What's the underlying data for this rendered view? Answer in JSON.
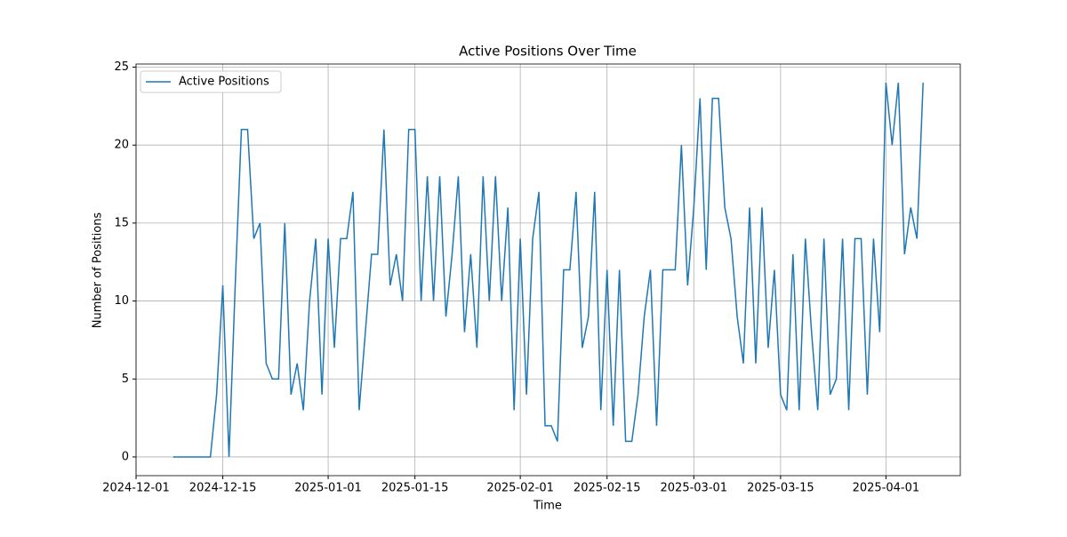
{
  "chart_data": {
    "type": "line",
    "title": "Active Positions Over Time",
    "xlabel": "Time",
    "ylabel": "Number of Positions",
    "x": [
      "2024-12-07",
      "2024-12-08",
      "2024-12-09",
      "2024-12-10",
      "2024-12-11",
      "2024-12-12",
      "2024-12-13",
      "2024-12-14",
      "2024-12-15",
      "2024-12-16",
      "2024-12-17",
      "2024-12-18",
      "2024-12-19",
      "2024-12-20",
      "2024-12-21",
      "2024-12-22",
      "2024-12-23",
      "2024-12-24",
      "2024-12-25",
      "2024-12-26",
      "2024-12-27",
      "2024-12-28",
      "2024-12-29",
      "2024-12-30",
      "2024-12-31",
      "2025-01-01",
      "2025-01-02",
      "2025-01-03",
      "2025-01-04",
      "2025-01-05",
      "2025-01-06",
      "2025-01-07",
      "2025-01-08",
      "2025-01-09",
      "2025-01-10",
      "2025-01-11",
      "2025-01-12",
      "2025-01-13",
      "2025-01-14",
      "2025-01-15",
      "2025-01-16",
      "2025-01-17",
      "2025-01-18",
      "2025-01-19",
      "2025-01-20",
      "2025-01-21",
      "2025-01-22",
      "2025-01-23",
      "2025-01-24",
      "2025-01-25",
      "2025-01-26",
      "2025-01-27",
      "2025-01-28",
      "2025-01-29",
      "2025-01-30",
      "2025-01-31",
      "2025-02-01",
      "2025-02-02",
      "2025-02-03",
      "2025-02-04",
      "2025-02-05",
      "2025-02-06",
      "2025-02-07",
      "2025-02-08",
      "2025-02-09",
      "2025-02-10",
      "2025-02-11",
      "2025-02-12",
      "2025-02-13",
      "2025-02-14",
      "2025-02-15",
      "2025-02-16",
      "2025-02-17",
      "2025-02-18",
      "2025-02-19",
      "2025-02-20",
      "2025-02-21",
      "2025-02-22",
      "2025-02-23",
      "2025-02-24",
      "2025-02-25",
      "2025-02-26",
      "2025-02-27",
      "2025-02-28",
      "2025-03-01",
      "2025-03-02",
      "2025-03-03",
      "2025-03-04",
      "2025-03-05",
      "2025-03-06",
      "2025-03-07",
      "2025-03-08",
      "2025-03-09",
      "2025-03-10",
      "2025-03-11",
      "2025-03-12",
      "2025-03-13",
      "2025-03-14",
      "2025-03-15",
      "2025-03-16",
      "2025-03-17",
      "2025-03-18",
      "2025-03-19",
      "2025-03-20",
      "2025-03-21",
      "2025-03-22",
      "2025-03-23",
      "2025-03-24",
      "2025-03-25",
      "2025-03-26",
      "2025-03-27",
      "2025-03-28",
      "2025-03-29",
      "2025-03-30",
      "2025-03-31",
      "2025-04-01",
      "2025-04-02",
      "2025-04-03",
      "2025-04-04",
      "2025-04-05",
      "2025-04-06",
      "2025-04-07"
    ],
    "series": [
      {
        "name": "Active Positions",
        "color": "#1f77b4",
        "values": [
          0,
          0,
          0,
          0,
          0,
          0,
          0,
          4,
          11,
          0,
          11,
          21,
          21,
          14,
          15,
          6,
          5,
          5,
          15,
          4,
          6,
          3,
          10,
          14,
          4,
          14,
          7,
          14,
          14,
          17,
          3,
          8,
          13,
          13,
          21,
          11,
          13,
          10,
          21,
          21,
          10,
          18,
          10,
          18,
          9,
          13,
          18,
          8,
          13,
          7,
          18,
          10,
          18,
          10,
          16,
          3,
          14,
          4,
          14,
          17,
          2,
          2,
          1,
          12,
          12,
          17,
          7,
          9,
          17,
          3,
          12,
          2,
          12,
          1,
          1,
          4,
          9,
          12,
          2,
          12,
          12,
          12,
          20,
          11,
          16,
          23,
          12,
          23,
          23,
          16,
          14,
          9,
          6,
          16,
          6,
          16,
          7,
          12,
          4,
          3,
          13,
          3,
          14,
          8,
          3,
          14,
          4,
          5,
          14,
          3,
          14,
          14,
          4,
          14,
          8,
          24,
          20,
          24,
          13,
          16,
          14,
          24
        ]
      }
    ],
    "xlim": [
      "2024-12-01",
      "2025-04-13"
    ],
    "xticks": [
      "2024-12-01",
      "2024-12-15",
      "2025-01-01",
      "2025-01-15",
      "2025-02-01",
      "2025-02-15",
      "2025-03-01",
      "2025-03-15",
      "2025-04-01"
    ],
    "ylim": [
      -1.2,
      25.2
    ],
    "yticks": [
      0,
      5,
      10,
      15,
      20,
      25
    ],
    "grid": true,
    "legend": "upper left"
  }
}
